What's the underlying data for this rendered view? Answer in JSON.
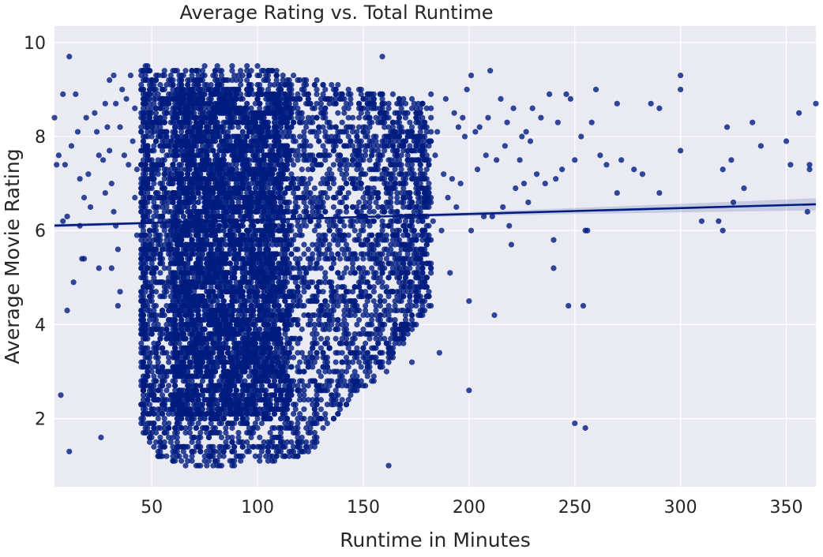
{
  "chart_data": {
    "type": "scatter",
    "title": "Average Rating vs. Total Runtime",
    "xlabel": "Runtime in Minutes",
    "ylabel": "Average Movie Rating",
    "xlim": [
      4,
      364
    ],
    "ylim": [
      0.55,
      10.35
    ],
    "xticks": [
      50,
      100,
      150,
      200,
      250,
      300,
      350
    ],
    "yticks": [
      2,
      4,
      6,
      8,
      10
    ],
    "grid": true,
    "colors": {
      "plot_background": "#eaeaf2",
      "points": "#001c7f",
      "regression_line": "#001c7f",
      "confidence_band": "#001c7f"
    },
    "series": [
      {
        "points": [
          [
            4,
            8.4
          ],
          [
            5,
            7.4
          ],
          [
            6,
            7.6
          ],
          [
            7,
            2.5
          ],
          [
            8,
            8.9
          ],
          [
            8,
            6.2
          ],
          [
            9,
            7.4
          ],
          [
            10,
            6.3
          ],
          [
            10,
            4.3
          ],
          [
            11,
            9.7
          ],
          [
            11,
            1.3
          ],
          [
            12,
            7.8
          ],
          [
            13,
            4.9
          ],
          [
            14,
            8.9
          ],
          [
            15,
            8.1
          ],
          [
            16,
            7.1
          ],
          [
            16,
            6.1
          ],
          [
            17,
            5.4
          ],
          [
            18,
            6.7
          ],
          [
            18,
            5.4
          ],
          [
            19,
            8.4
          ],
          [
            20,
            7.2
          ],
          [
            21,
            6.5
          ],
          [
            23,
            8.5
          ],
          [
            24,
            8.1
          ],
          [
            25,
            7.6
          ],
          [
            25,
            5.2
          ],
          [
            26,
            1.6
          ],
          [
            27,
            7.5
          ],
          [
            28,
            8.7
          ],
          [
            28,
            6.8
          ],
          [
            29,
            8.2
          ],
          [
            30,
            9.2
          ],
          [
            30,
            7.7
          ],
          [
            31,
            7.0
          ],
          [
            31,
            5.2
          ],
          [
            32,
            9.3
          ],
          [
            32,
            6.4
          ],
          [
            33,
            8.7
          ],
          [
            33,
            6.1
          ],
          [
            34,
            4.4
          ],
          [
            34,
            5.6
          ],
          [
            35,
            8.2
          ],
          [
            35,
            4.7
          ],
          [
            36,
            9.0
          ],
          [
            37,
            7.6
          ],
          [
            38,
            8.8
          ],
          [
            39,
            7.4
          ],
          [
            40,
            9.3
          ],
          [
            41,
            7.9
          ],
          [
            42,
            8.6
          ],
          [
            42,
            6.7
          ],
          [
            43,
            7.3
          ],
          [
            43,
            5.9
          ]
        ]
      },
      {
        "points": [
          [
            155,
            8.0
          ],
          [
            156,
            6.8
          ],
          [
            157,
            5.5
          ],
          [
            158,
            4.4
          ],
          [
            159,
            9.7
          ],
          [
            160,
            7.3
          ],
          [
            161,
            5.9
          ],
          [
            161,
            3.0
          ],
          [
            162,
            1.0
          ],
          [
            163,
            6.6
          ],
          [
            164,
            4.7
          ],
          [
            165,
            7.9
          ],
          [
            166,
            8.3
          ],
          [
            167,
            5.4
          ],
          [
            168,
            3.7
          ],
          [
            169,
            6.1
          ],
          [
            170,
            7.0
          ],
          [
            171,
            4.0
          ],
          [
            172,
            8.1
          ],
          [
            173,
            3.2
          ],
          [
            174,
            6.5
          ],
          [
            175,
            5.0
          ],
          [
            176,
            7.5
          ],
          [
            177,
            8.3
          ],
          [
            178,
            4.2
          ],
          [
            179,
            6.8
          ],
          [
            180,
            5.8
          ],
          [
            181,
            7.4
          ],
          [
            182,
            8.9
          ],
          [
            182,
            4.4
          ],
          [
            183,
            6.2
          ],
          [
            184,
            7.6
          ],
          [
            185,
            8.1
          ],
          [
            186,
            3.4
          ],
          [
            187,
            6.0
          ],
          [
            188,
            7.2
          ],
          [
            189,
            8.8
          ],
          [
            190,
            6.7
          ],
          [
            191,
            5.1
          ],
          [
            192,
            7.1
          ],
          [
            193,
            8.5
          ],
          [
            194,
            6.5
          ],
          [
            195,
            8.2
          ],
          [
            196,
            7.0
          ],
          [
            197,
            8.4
          ],
          [
            198,
            8.0
          ],
          [
            199,
            9.0
          ],
          [
            200,
            2.6
          ],
          [
            200,
            4.5
          ],
          [
            201,
            6.0
          ],
          [
            201,
            9.3
          ],
          [
            203,
            8.1
          ],
          [
            204,
            7.3
          ],
          [
            205,
            8.2
          ],
          [
            207,
            6.3
          ],
          [
            208,
            7.6
          ],
          [
            209,
            8.4
          ],
          [
            210,
            9.4
          ],
          [
            211,
            6.3
          ],
          [
            212,
            4.2
          ],
          [
            213,
            7.5
          ],
          [
            215,
            8.8
          ],
          [
            216,
            6.5
          ],
          [
            217,
            7.8
          ],
          [
            218,
            8.3
          ],
          [
            219,
            6.1
          ],
          [
            220,
            5.7
          ],
          [
            221,
            8.6
          ],
          [
            222,
            6.9
          ],
          [
            224,
            7.5
          ],
          [
            225,
            8.0
          ],
          [
            226,
            7.0
          ],
          [
            227,
            8.1
          ],
          [
            228,
            6.6
          ],
          [
            229,
            7.9
          ],
          [
            230,
            8.6
          ],
          [
            232,
            7.2
          ],
          [
            234,
            8.4
          ],
          [
            236,
            7.0
          ],
          [
            238,
            8.9
          ],
          [
            240,
            5.2
          ],
          [
            240,
            5.8
          ],
          [
            241,
            7.1
          ],
          [
            242,
            8.3
          ],
          [
            244,
            7.3
          ],
          [
            246,
            8.9
          ],
          [
            247,
            4.4
          ],
          [
            248,
            8.8
          ],
          [
            250,
            1.9
          ],
          [
            250,
            7.5
          ],
          [
            253,
            8.0
          ],
          [
            254,
            4.4
          ],
          [
            255,
            1.8
          ],
          [
            255,
            6.0
          ],
          [
            256,
            6.0
          ],
          [
            258,
            8.3
          ],
          [
            260,
            9.0
          ],
          [
            262,
            7.6
          ],
          [
            265,
            7.4
          ],
          [
            270,
            6.8
          ],
          [
            270,
            8.7
          ],
          [
            272,
            7.5
          ],
          [
            278,
            7.3
          ],
          [
            282,
            7.2
          ],
          [
            286,
            8.7
          ],
          [
            290,
            6.8
          ],
          [
            290,
            8.6
          ],
          [
            300,
            7.7
          ],
          [
            300,
            9.0
          ],
          [
            300,
            9.3
          ],
          [
            310,
            6.2
          ],
          [
            318,
            6.2
          ],
          [
            320,
            6.0
          ],
          [
            320,
            7.3
          ],
          [
            322,
            8.2
          ],
          [
            324,
            7.5
          ],
          [
            325,
            6.6
          ],
          [
            330,
            6.9
          ],
          [
            334,
            8.3
          ],
          [
            338,
            7.8
          ],
          [
            350,
            7.9
          ],
          [
            352,
            7.4
          ],
          [
            356,
            8.5
          ],
          [
            360,
            6.4
          ],
          [
            361,
            7.4
          ],
          [
            361,
            7.3
          ],
          [
            364,
            8.7
          ]
        ]
      }
    ],
    "dense_region": {
      "description_free": true,
      "x_range": [
        45,
        182
      ],
      "y_max_profile": [
        [
          45,
          9.5
        ],
        [
          60,
          9.4
        ],
        [
          80,
          9.5
        ],
        [
          100,
          9.5
        ],
        [
          120,
          9.3
        ],
        [
          140,
          9.1
        ],
        [
          160,
          8.9
        ],
        [
          182,
          8.7
        ]
      ],
      "y_min_profile": [
        [
          45,
          1.8
        ],
        [
          55,
          1.1
        ],
        [
          70,
          1.0
        ],
        [
          90,
          1.0
        ],
        [
          110,
          1.1
        ],
        [
          125,
          1.3
        ],
        [
          140,
          2.2
        ],
        [
          160,
          3.0
        ],
        [
          182,
          4.5
        ]
      ],
      "core_x_range": [
        60,
        115
      ],
      "core_y_range": [
        2.0,
        9.0
      ]
    },
    "regression": {
      "slope": 0.00126,
      "intercept": 6.1,
      "x_range": [
        4,
        364
      ],
      "ci_halfwidth_at_mean": 0.02,
      "ci_halfwidth_at_max": 0.13
    }
  }
}
